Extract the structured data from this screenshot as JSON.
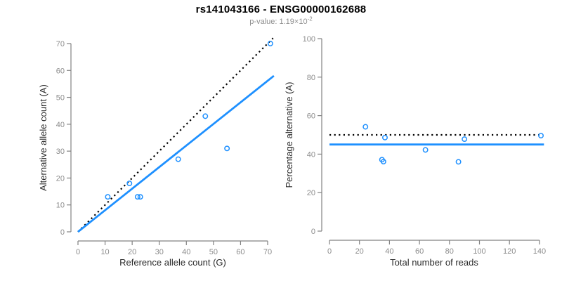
{
  "header": {
    "title": "rs141043166 - ENSG00000162688",
    "pvalue_label": "p-value: ",
    "pvalue_base": "1.19×10",
    "pvalue_exp": "-2"
  },
  "colors": {
    "accent_blue": "#1E90FF",
    "dotted_black": "#000000",
    "axis_gray": "#828282",
    "tick_label_gray": "#8c8c8c",
    "axis_title_dark": "#2b2b2b"
  },
  "chart_data": [
    {
      "type": "scatter",
      "panel": "allele-counts",
      "xlabel": "Reference allele count (G)",
      "ylabel": "Alternative allele count (A)",
      "xlim": [
        0,
        70
      ],
      "ylim": [
        0,
        70
      ],
      "xticks": [
        0,
        10,
        20,
        30,
        40,
        50,
        60,
        70
      ],
      "yticks": [
        0,
        10,
        20,
        30,
        40,
        50,
        60,
        70
      ],
      "grid": false,
      "points": [
        [
          11,
          13
        ],
        [
          19,
          18
        ],
        [
          22,
          13
        ],
        [
          23,
          13
        ],
        [
          37,
          27
        ],
        [
          47,
          43
        ],
        [
          55,
          31
        ],
        [
          71,
          70
        ]
      ],
      "lines": [
        {
          "name": "expected-1to1",
          "style": "dotted",
          "color": "#000000",
          "x": [
            0,
            72
          ],
          "y": [
            0,
            72
          ]
        },
        {
          "name": "fitted",
          "style": "solid",
          "color": "#1E90FF",
          "x": [
            0,
            72.3
          ],
          "y": [
            0,
            58
          ]
        }
      ]
    },
    {
      "type": "scatter",
      "panel": "percentage-vs-coverage",
      "xlabel": "Total number of reads",
      "ylabel": "Percentage alternative (A)",
      "xlim": [
        0,
        140
      ],
      "ylim": [
        0,
        100
      ],
      "xticks": [
        0,
        20,
        40,
        60,
        80,
        100,
        120,
        140
      ],
      "yticks": [
        0,
        20,
        40,
        60,
        80,
        100
      ],
      "grid": false,
      "points": [
        [
          24,
          54.2
        ],
        [
          35,
          37.1
        ],
        [
          36,
          36.1
        ],
        [
          37,
          48.6
        ],
        [
          64,
          42.2
        ],
        [
          86,
          36.0
        ],
        [
          90,
          47.8
        ],
        [
          141,
          49.6
        ]
      ],
      "lines": [
        {
          "name": "expected-50pct",
          "style": "dotted",
          "color": "#000000",
          "x": [
            0,
            140
          ],
          "y": [
            50,
            50
          ]
        },
        {
          "name": "fitted",
          "style": "solid",
          "color": "#1E90FF",
          "x": [
            0,
            143
          ],
          "y": [
            45,
            45
          ]
        }
      ]
    }
  ]
}
